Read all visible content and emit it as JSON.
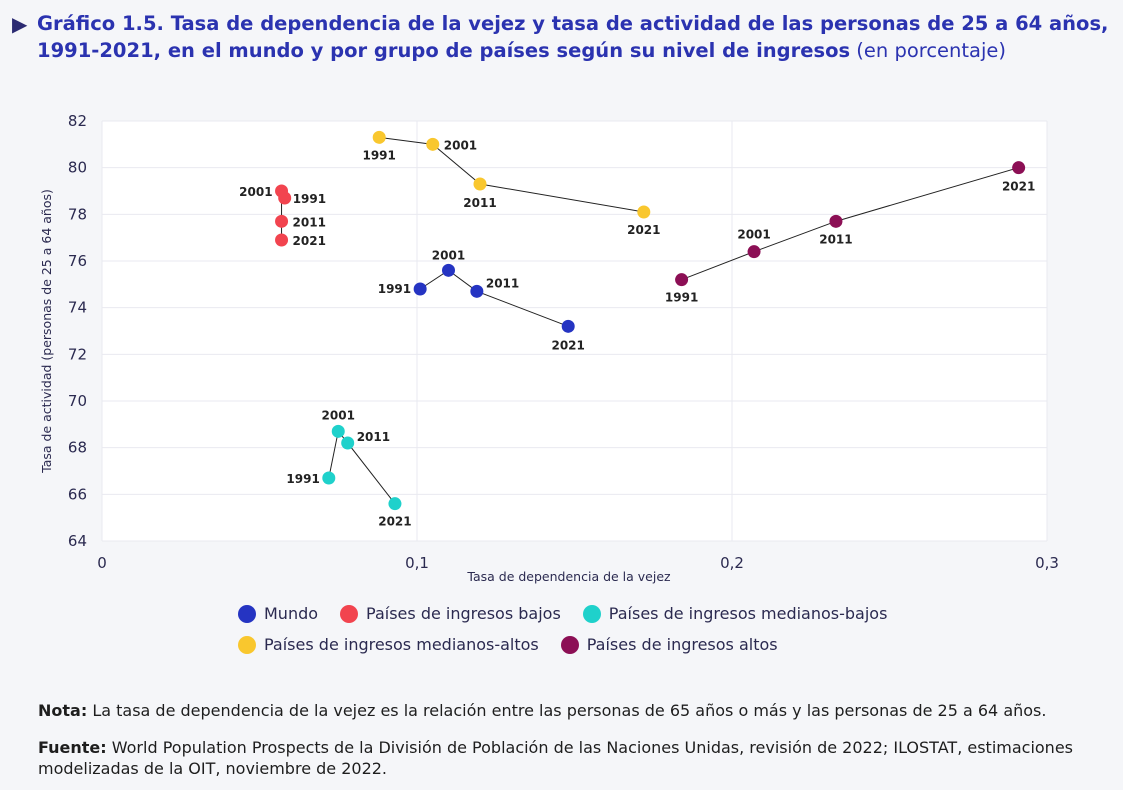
{
  "title": {
    "bold": "Gráfico 1.5.  Tasa de dependencia de la vejez y tasa de actividad de las personas de 25 a 64 años, 1991-2021, en el mundo y por grupo de países según su nivel de ingresos",
    "normal": " (en porcentaje)"
  },
  "chart_data": {
    "type": "scatter",
    "xlabel": "Tasa de dependencia de la vejez",
    "ylabel": "Tasa de actividad (personas de 25 a 64 años)",
    "xlim": [
      0,
      0.3
    ],
    "ylim": [
      64,
      82
    ],
    "x_ticks": [
      "0",
      "0,1",
      "0,2",
      "0,3"
    ],
    "y_ticks": [
      "64",
      "66",
      "68",
      "70",
      "72",
      "74",
      "76",
      "78",
      "80",
      "82"
    ],
    "series": [
      {
        "name": "Mundo",
        "color": "#2534c2",
        "points": [
          {
            "label": "1991",
            "x": 0.101,
            "y": 74.8
          },
          {
            "label": "2001",
            "x": 0.11,
            "y": 75.6
          },
          {
            "label": "2011",
            "x": 0.119,
            "y": 74.7
          },
          {
            "label": "2021",
            "x": 0.148,
            "y": 73.2
          }
        ]
      },
      {
        "name": "Países de ingresos bajos",
        "color": "#f2444f",
        "points": [
          {
            "label": "1991",
            "x": 0.058,
            "y": 78.7
          },
          {
            "label": "2001",
            "x": 0.057,
            "y": 79.0
          },
          {
            "label": "2011",
            "x": 0.057,
            "y": 77.7
          },
          {
            "label": "2021",
            "x": 0.057,
            "y": 76.9
          }
        ]
      },
      {
        "name": "Países de ingresos medianos-bajos",
        "color": "#1fd1cb",
        "points": [
          {
            "label": "1991",
            "x": 0.072,
            "y": 66.7
          },
          {
            "label": "2001",
            "x": 0.075,
            "y": 68.7
          },
          {
            "label": "2011",
            "x": 0.078,
            "y": 68.2
          },
          {
            "label": "2021",
            "x": 0.093,
            "y": 65.6
          }
        ]
      },
      {
        "name": "Países de ingresos medianos-altos",
        "color": "#f9c72e",
        "points": [
          {
            "label": "1991",
            "x": 0.088,
            "y": 81.3
          },
          {
            "label": "2001",
            "x": 0.105,
            "y": 81.0
          },
          {
            "label": "2011",
            "x": 0.12,
            "y": 79.3
          },
          {
            "label": "2021",
            "x": 0.172,
            "y": 78.1
          }
        ]
      },
      {
        "name": "Países de ingresos altos",
        "color": "#8c0f55",
        "points": [
          {
            "label": "1991",
            "x": 0.184,
            "y": 75.2
          },
          {
            "label": "2001",
            "x": 0.207,
            "y": 76.4
          },
          {
            "label": "2011",
            "x": 0.233,
            "y": 77.7
          },
          {
            "label": "2021",
            "x": 0.291,
            "y": 80.0
          }
        ]
      }
    ]
  },
  "legend": {
    "row1": [
      "Mundo",
      "Países de ingresos bajos",
      "Países de ingresos medianos-bajos"
    ],
    "row2": [
      "Países de ingresos medianos-altos",
      "Países de ingresos altos"
    ]
  },
  "note": {
    "label": "Nota:",
    "text": " La tasa de dependencia de la vejez es la relación entre las personas de 65 años o más y las personas de 25 a 64 años."
  },
  "source": {
    "label": "Fuente:",
    "text": " World Population Prospects de la División de Población de las Naciones Unidas, revisión de 2022; ILOSTAT, estimaciones modelizadas de la OIT, noviembre de 2022."
  }
}
